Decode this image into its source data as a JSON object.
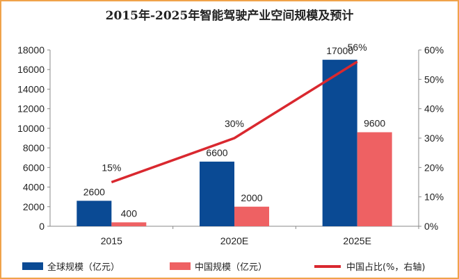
{
  "chart_data": {
    "type": "bar",
    "title": "2015年-2025年智能驾驶产业空间规模及预计",
    "categories": [
      "2015",
      "2020E",
      "2025E"
    ],
    "series": [
      {
        "name": "全球规模（亿元）",
        "kind": "bar",
        "axis": "left",
        "color": "#0a4a94",
        "values": [
          2600,
          6600,
          17000
        ]
      },
      {
        "name": "中国规模（亿元）",
        "kind": "bar",
        "axis": "left",
        "color": "#ee6163",
        "values": [
          400,
          2000,
          9600
        ]
      },
      {
        "name": "中国占比(%，右轴)",
        "kind": "line",
        "axis": "right",
        "color": "#d9282f",
        "values": [
          15,
          30,
          56
        ],
        "labels": [
          "15%",
          "30%",
          "56%"
        ]
      }
    ],
    "ylim": [
      0,
      18000
    ],
    "yticks": [
      "0",
      "2000",
      "4000",
      "6000",
      "8000",
      "10000",
      "12000",
      "14000",
      "16000",
      "18000"
    ],
    "y2lim": [
      0,
      60
    ],
    "y2ticks": [
      "0%",
      "10%",
      "20%",
      "30%",
      "40%",
      "50%",
      "60%"
    ],
    "grid": false,
    "legend": "bottom"
  }
}
